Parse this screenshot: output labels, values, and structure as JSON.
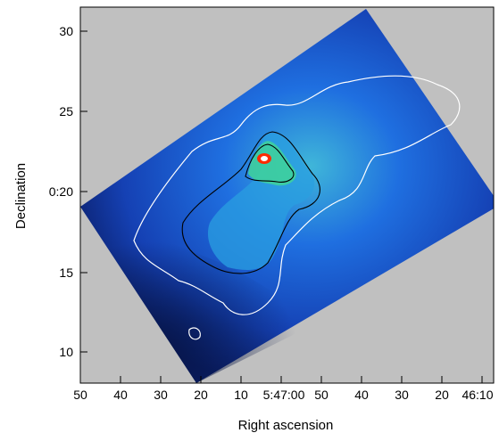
{
  "figure": {
    "xlabel": "Right ascension",
    "ylabel": "Declination",
    "x_tick_labels": [
      "50",
      "40",
      "30",
      "20",
      "10",
      "5:47:00",
      "50",
      "40",
      "30",
      "20",
      "46:10"
    ],
    "y_tick_labels": [
      "10",
      "15",
      "0:20",
      "25",
      "30"
    ],
    "colors": {
      "background": "#c0c0c0",
      "map_low": "#0a1a5c",
      "map_mid": "#1f5fd8",
      "map_high": "#49d2b8",
      "peak": "#ff2a00",
      "contour_outer": "#ffffff",
      "contour_inner": "#000000"
    }
  }
}
